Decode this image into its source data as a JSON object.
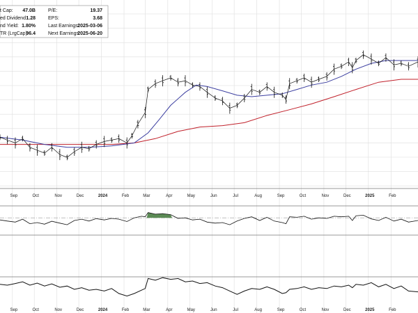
{
  "stats": {
    "left": [
      {
        "label": "t Cap:",
        "value": "47.0B"
      },
      {
        "label": "ed Dividend:",
        "value": "1.28"
      },
      {
        "label": "nd Yield:",
        "value": "1.80%"
      },
      {
        "label": "TR (LrgCap):",
        "value": "96.4"
      }
    ],
    "right": [
      {
        "label": "P/E:",
        "value": "19.37"
      },
      {
        "label": "EPS:",
        "value": "3.68"
      },
      {
        "label": "Last Earnings:",
        "value": "2025-03-06"
      },
      {
        "label": "Next Earnings:",
        "value": "2025-06-20"
      }
    ]
  },
  "chart_data": {
    "type": "line",
    "x_range": [
      "2023-08-15",
      "2025-03-10"
    ],
    "axis_labels": [
      {
        "label": "Sep",
        "date": "2023-09-01"
      },
      {
        "label": "Oct",
        "date": "2023-10-01"
      },
      {
        "label": "Nov",
        "date": "2023-11-01"
      },
      {
        "label": "Dec",
        "date": "2023-12-01"
      },
      {
        "label": "2024",
        "date": "2024-01-01",
        "year": true
      },
      {
        "label": "Feb",
        "date": "2024-02-01"
      },
      {
        "label": "Mar",
        "date": "2024-03-01"
      },
      {
        "label": "Apr",
        "date": "2024-04-01"
      },
      {
        "label": "May",
        "date": "2024-05-01"
      },
      {
        "label": "Jun",
        "date": "2024-06-01"
      },
      {
        "label": "Jul",
        "date": "2024-07-01"
      },
      {
        "label": "Aug",
        "date": "2024-08-01"
      },
      {
        "label": "Sep",
        "date": "2024-09-01"
      },
      {
        "label": "Oct",
        "date": "2024-10-01"
      },
      {
        "label": "Nov",
        "date": "2024-11-01"
      },
      {
        "label": "Dec",
        "date": "2024-12-01"
      },
      {
        "label": "2025",
        "date": "2025-01-01",
        "year": true
      },
      {
        "label": "Feb",
        "date": "2025-02-01"
      }
    ],
    "grid": true,
    "price_panel": {
      "ylim": [
        0,
        100
      ],
      "price": [
        [
          "2023-08-15",
          35
        ],
        [
          "2023-08-25",
          33
        ],
        [
          "2023-09-05",
          31
        ],
        [
          "2023-09-15",
          34
        ],
        [
          "2023-09-25",
          28
        ],
        [
          "2023-10-05",
          26
        ],
        [
          "2023-10-15",
          24
        ],
        [
          "2023-10-25",
          28
        ],
        [
          "2023-11-05",
          23
        ],
        [
          "2023-11-15",
          21
        ],
        [
          "2023-11-25",
          25
        ],
        [
          "2023-12-05",
          28
        ],
        [
          "2023-12-15",
          27
        ],
        [
          "2023-12-25",
          30
        ],
        [
          "2024-01-05",
          32
        ],
        [
          "2024-01-15",
          33
        ],
        [
          "2024-01-25",
          34
        ],
        [
          "2024-02-05",
          31
        ],
        [
          "2024-02-12",
          36
        ],
        [
          "2024-02-20",
          44
        ],
        [
          "2024-03-01",
          52
        ],
        [
          "2024-03-05",
          68
        ],
        [
          "2024-03-15",
          72
        ],
        [
          "2024-03-25",
          74
        ],
        [
          "2024-04-05",
          76
        ],
        [
          "2024-04-15",
          73
        ],
        [
          "2024-04-25",
          74
        ],
        [
          "2024-05-05",
          71
        ],
        [
          "2024-05-15",
          70
        ],
        [
          "2024-05-25",
          66
        ],
        [
          "2024-06-05",
          62
        ],
        [
          "2024-06-15",
          60
        ],
        [
          "2024-06-25",
          55
        ],
        [
          "2024-07-05",
          57
        ],
        [
          "2024-07-15",
          62
        ],
        [
          "2024-07-25",
          68
        ],
        [
          "2024-08-05",
          66
        ],
        [
          "2024-08-15",
          70
        ],
        [
          "2024-08-25",
          66
        ],
        [
          "2024-09-05",
          64
        ],
        [
          "2024-09-10",
          61
        ],
        [
          "2024-09-15",
          72
        ],
        [
          "2024-09-25",
          74
        ],
        [
          "2024-10-05",
          76
        ],
        [
          "2024-10-15",
          73
        ],
        [
          "2024-10-25",
          75
        ],
        [
          "2024-11-05",
          77
        ],
        [
          "2024-11-15",
          82
        ],
        [
          "2024-11-25",
          84
        ],
        [
          "2024-12-05",
          87
        ],
        [
          "2024-12-10",
          83
        ],
        [
          "2024-12-15",
          88
        ],
        [
          "2024-12-25",
          92
        ],
        [
          "2025-01-05",
          89
        ],
        [
          "2025-01-15",
          86
        ],
        [
          "2025-01-25",
          90
        ],
        [
          "2025-02-05",
          85
        ],
        [
          "2025-02-15",
          86
        ],
        [
          "2025-02-25",
          84
        ],
        [
          "2025-03-10",
          87
        ]
      ],
      "sma50": [
        [
          "2023-08-15",
          35
        ],
        [
          "2023-09-15",
          33
        ],
        [
          "2023-10-15",
          30
        ],
        [
          "2023-11-15",
          28
        ],
        [
          "2023-12-15",
          28
        ],
        [
          "2024-01-15",
          29
        ],
        [
          "2024-02-15",
          31
        ],
        [
          "2024-03-05",
          38
        ],
        [
          "2024-03-20",
          47
        ],
        [
          "2024-04-05",
          57
        ],
        [
          "2024-04-25",
          66
        ],
        [
          "2024-05-10",
          71
        ],
        [
          "2024-05-25",
          70
        ],
        [
          "2024-06-15",
          67
        ],
        [
          "2024-07-05",
          64
        ],
        [
          "2024-07-25",
          63
        ],
        [
          "2024-08-15",
          64
        ],
        [
          "2024-09-05",
          65
        ],
        [
          "2024-09-25",
          68
        ],
        [
          "2024-10-15",
          71
        ],
        [
          "2024-11-05",
          73
        ],
        [
          "2024-11-25",
          77
        ],
        [
          "2024-12-15",
          82
        ],
        [
          "2025-01-05",
          86
        ],
        [
          "2025-01-25",
          88
        ],
        [
          "2025-02-15",
          88
        ],
        [
          "2025-03-10",
          88
        ]
      ],
      "sma200": [
        [
          "2023-08-15",
          30
        ],
        [
          "2023-10-01",
          30
        ],
        [
          "2023-12-01",
          30
        ],
        [
          "2024-01-15",
          30
        ],
        [
          "2024-02-15",
          31
        ],
        [
          "2024-03-15",
          34
        ],
        [
          "2024-04-15",
          39
        ],
        [
          "2024-05-15",
          42
        ],
        [
          "2024-06-15",
          43
        ],
        [
          "2024-07-15",
          45
        ],
        [
          "2024-08-15",
          50
        ],
        [
          "2024-09-15",
          54
        ],
        [
          "2024-10-15",
          58
        ],
        [
          "2024-11-15",
          63
        ],
        [
          "2024-12-15",
          68
        ],
        [
          "2025-01-15",
          73
        ],
        [
          "2025-02-15",
          75
        ],
        [
          "2025-03-10",
          75
        ]
      ]
    },
    "indicator_panel_1": {
      "ylim": [
        0,
        100
      ],
      "reference_line": 60,
      "values": [
        [
          "2023-08-15",
          52
        ],
        [
          "2023-08-25",
          48
        ],
        [
          "2023-09-05",
          44
        ],
        [
          "2023-09-15",
          55
        ],
        [
          "2023-09-25",
          38
        ],
        [
          "2023-10-05",
          42
        ],
        [
          "2023-10-15",
          36
        ],
        [
          "2023-10-25",
          47
        ],
        [
          "2023-11-05",
          40
        ],
        [
          "2023-11-15",
          34
        ],
        [
          "2023-11-25",
          50
        ],
        [
          "2023-12-05",
          55
        ],
        [
          "2023-12-15",
          48
        ],
        [
          "2023-12-25",
          57
        ],
        [
          "2024-01-05",
          52
        ],
        [
          "2024-01-15",
          58
        ],
        [
          "2024-01-25",
          55
        ],
        [
          "2024-02-05",
          46
        ],
        [
          "2024-02-15",
          60
        ],
        [
          "2024-02-25",
          66
        ],
        [
          "2024-03-01",
          64
        ],
        [
          "2024-03-05",
          80
        ],
        [
          "2024-03-15",
          74
        ],
        [
          "2024-03-25",
          76
        ],
        [
          "2024-04-05",
          72
        ],
        [
          "2024-04-15",
          58
        ],
        [
          "2024-04-25",
          60
        ],
        [
          "2024-05-05",
          52
        ],
        [
          "2024-05-15",
          55
        ],
        [
          "2024-05-25",
          44
        ],
        [
          "2024-06-05",
          40
        ],
        [
          "2024-06-15",
          42
        ],
        [
          "2024-06-25",
          34
        ],
        [
          "2024-07-05",
          48
        ],
        [
          "2024-07-15",
          58
        ],
        [
          "2024-07-25",
          64
        ],
        [
          "2024-08-05",
          50
        ],
        [
          "2024-08-15",
          62
        ],
        [
          "2024-08-25",
          48
        ],
        [
          "2024-09-05",
          42
        ],
        [
          "2024-09-10",
          38
        ],
        [
          "2024-09-15",
          64
        ],
        [
          "2024-09-25",
          62
        ],
        [
          "2024-10-05",
          66
        ],
        [
          "2024-10-15",
          55
        ],
        [
          "2024-10-25",
          60
        ],
        [
          "2024-11-05",
          58
        ],
        [
          "2024-11-15",
          66
        ],
        [
          "2024-11-25",
          64
        ],
        [
          "2024-12-05",
          66
        ],
        [
          "2024-12-10",
          50
        ],
        [
          "2024-12-15",
          68
        ],
        [
          "2024-12-25",
          70
        ],
        [
          "2025-01-05",
          56
        ],
        [
          "2025-01-15",
          50
        ],
        [
          "2025-01-25",
          62
        ],
        [
          "2025-02-05",
          48
        ],
        [
          "2025-02-15",
          55
        ],
        [
          "2025-02-25",
          44
        ],
        [
          "2025-03-10",
          50
        ]
      ]
    },
    "indicator_panel_2": {
      "ylim": [
        0,
        100
      ],
      "values": [
        [
          "2023-08-15",
          52
        ],
        [
          "2023-08-25",
          50
        ],
        [
          "2023-09-05",
          54
        ],
        [
          "2023-09-15",
          58
        ],
        [
          "2023-09-25",
          50
        ],
        [
          "2023-10-05",
          55
        ],
        [
          "2023-10-15",
          48
        ],
        [
          "2023-10-25",
          53
        ],
        [
          "2023-11-05",
          45
        ],
        [
          "2023-11-15",
          48
        ],
        [
          "2023-11-25",
          40
        ],
        [
          "2023-12-05",
          44
        ],
        [
          "2023-12-15",
          38
        ],
        [
          "2023-12-25",
          40
        ],
        [
          "2024-01-05",
          36
        ],
        [
          "2024-01-15",
          42
        ],
        [
          "2024-01-25",
          30
        ],
        [
          "2024-02-05",
          24
        ],
        [
          "2024-02-15",
          30
        ],
        [
          "2024-02-25",
          38
        ],
        [
          "2024-03-01",
          42
        ],
        [
          "2024-03-05",
          66
        ],
        [
          "2024-03-15",
          62
        ],
        [
          "2024-03-25",
          68
        ],
        [
          "2024-04-05",
          64
        ],
        [
          "2024-04-15",
          66
        ],
        [
          "2024-04-25",
          58
        ],
        [
          "2024-05-05",
          60
        ],
        [
          "2024-05-15",
          54
        ],
        [
          "2024-05-25",
          56
        ],
        [
          "2024-06-05",
          48
        ],
        [
          "2024-06-15",
          44
        ],
        [
          "2024-06-25",
          36
        ],
        [
          "2024-07-05",
          28
        ],
        [
          "2024-07-15",
          36
        ],
        [
          "2024-07-25",
          42
        ],
        [
          "2024-08-05",
          40
        ],
        [
          "2024-08-15",
          46
        ],
        [
          "2024-08-25",
          40
        ],
        [
          "2024-09-05",
          30
        ],
        [
          "2024-09-10",
          32
        ],
        [
          "2024-09-15",
          40
        ],
        [
          "2024-09-25",
          42
        ],
        [
          "2024-10-05",
          46
        ],
        [
          "2024-10-15",
          40
        ],
        [
          "2024-10-25",
          44
        ],
        [
          "2024-11-05",
          42
        ],
        [
          "2024-11-15",
          48
        ],
        [
          "2024-11-25",
          46
        ],
        [
          "2024-12-05",
          50
        ],
        [
          "2024-12-10",
          44
        ],
        [
          "2024-12-15",
          52
        ],
        [
          "2024-12-25",
          50
        ],
        [
          "2025-01-05",
          56
        ],
        [
          "2025-01-15",
          46
        ],
        [
          "2025-01-25",
          52
        ],
        [
          "2025-02-05",
          42
        ],
        [
          "2025-02-15",
          48
        ],
        [
          "2025-02-25",
          36
        ],
        [
          "2025-03-10",
          34
        ]
      ]
    }
  },
  "colors": {
    "grid": "#dddddd",
    "price": "#111111",
    "sma50": "#3b3ea0",
    "sma200": "#c0202a",
    "indicator": "#111111",
    "highlight_fill": "#5b8a55",
    "reference": "#999999",
    "panel_border": "#777777"
  }
}
